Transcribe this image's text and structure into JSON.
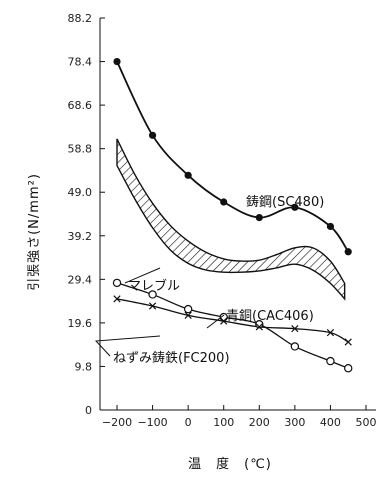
{
  "chart_data": {
    "type": "line",
    "xlabel": "温　度　(℃)",
    "ylabel": "引張強さ(N/mm²)",
    "x_ticks": [
      "−200",
      "−100",
      "0",
      "100",
      "200",
      "300",
      "400",
      "500"
    ],
    "y_ticks": [
      "0",
      "9.8",
      "19.6",
      "29.4",
      "39.2",
      "49.0",
      "58.8",
      "68.6",
      "78.4",
      "88.2"
    ],
    "xlim": [
      -200,
      500
    ],
    "ylim": [
      0,
      88.2
    ],
    "grid": false,
    "series": [
      {
        "name": "鋳鋼(SC480)",
        "marker": "filled-circle",
        "x": [
          -200,
          -100,
          0,
          100,
          200,
          300,
          400,
          450
        ],
        "y": [
          78.4,
          61.8,
          52.8,
          46.8,
          43.3,
          45.6,
          41.3,
          35.6
        ]
      },
      {
        "name": "青銅(CAC406)",
        "marker": "open-circle",
        "x": [
          -200,
          -100,
          0,
          100,
          200,
          300,
          400,
          450
        ],
        "y": [
          28.6,
          26.0,
          22.7,
          20.9,
          19.3,
          14.3,
          11.0,
          9.4
        ]
      },
      {
        "name": "ねずみ鋳鉄(FC200)",
        "marker": "cross",
        "x": [
          -200,
          -100,
          0,
          100,
          200,
          300,
          400,
          450
        ],
        "y": [
          25.0,
          23.4,
          21.3,
          20.0,
          18.7,
          18.3,
          17.4,
          15.3
        ]
      },
      {
        "name": "マレブル",
        "marker": "hatched-band",
        "x": [
          -200,
          -150,
          -100,
          -50,
          0,
          50,
          100,
          150,
          200,
          250,
          300,
          350,
          400,
          440
        ],
        "upper": [
          61.0,
          53.0,
          46.5,
          41.5,
          38.0,
          35.5,
          34.0,
          33.5,
          33.7,
          35.0,
          36.5,
          36.5,
          33.5,
          28.5
        ],
        "lower": [
          55.0,
          47.5,
          41.0,
          36.0,
          33.0,
          31.5,
          31.0,
          31.0,
          31.3,
          32.0,
          32.8,
          31.5,
          28.5,
          25.0
        ]
      }
    ]
  }
}
